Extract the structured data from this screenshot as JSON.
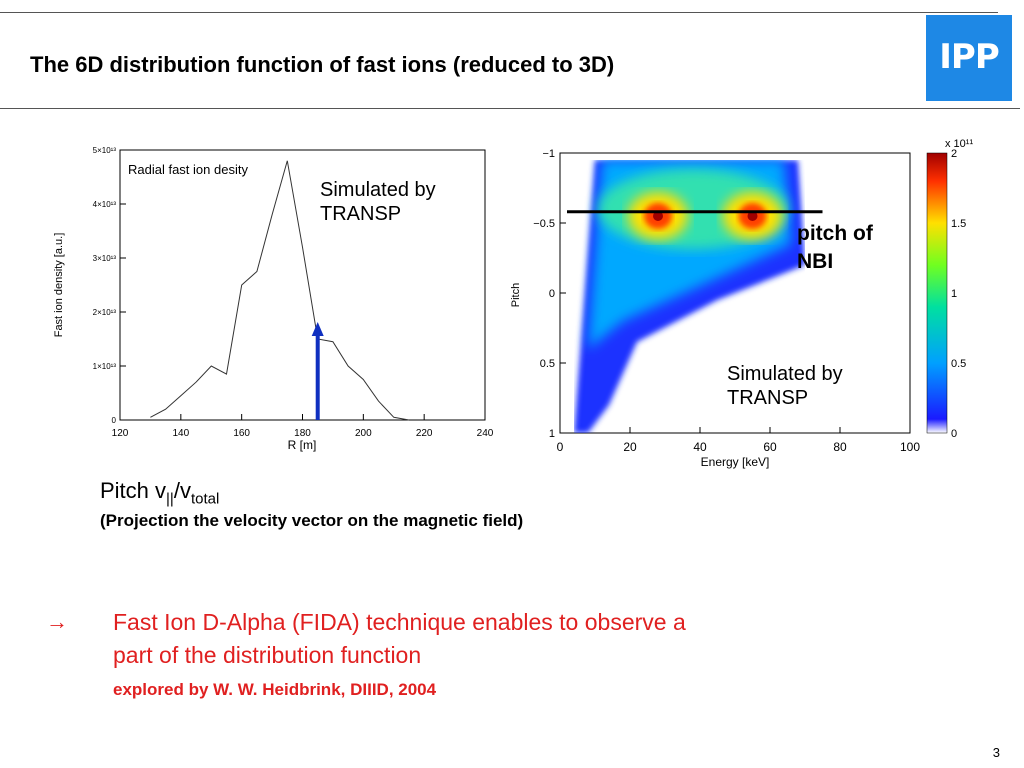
{
  "slide": {
    "title": "The 6D distribution function of fast ions (reduced to 3D)",
    "logo_text": "IPP",
    "page_number": "3",
    "pitch_label_main": "Pitch v",
    "pitch_label_sub1": "||",
    "pitch_label_mid": "/v",
    "pitch_label_sub2": "total",
    "projection_text": "(Projection the velocity vector on the magnetic field)",
    "arrow_glyph": "→",
    "fida_text": "Fast Ion D-Alpha (FIDA) technique enables to observe a part of the distribution function",
    "explored_text": "explored by W. W. Heidbrink, DIIID, 2004",
    "annotations": {
      "sim_left_1": "Simulated by",
      "sim_left_2": "TRANSP",
      "pitch_nbi_1": "pitch of",
      "pitch_nbi_2": "NBI",
      "sim_right_1": "Simulated by",
      "sim_right_2": "TRANSP"
    },
    "colors": {
      "accent": "#e02020",
      "logo_bg": "#1e88e5",
      "arrow_blue": "#1030c0"
    }
  },
  "chart_data": [
    {
      "type": "line",
      "title": "Radial fast ion desity",
      "xlabel": "R [m]",
      "ylabel": "Fast ion density [a.u.]",
      "xlim": [
        120,
        240
      ],
      "ylim": [
        0,
        50000000000000.0
      ],
      "xticks": [
        "120",
        "140",
        "160",
        "180",
        "200",
        "220",
        "240"
      ],
      "yticks": [
        "0",
        "1×10¹³",
        "2×10¹³",
        "3×10¹³",
        "4×10¹³",
        "5×10¹³"
      ],
      "x": [
        130,
        135,
        140,
        145,
        150,
        155,
        160,
        165,
        170,
        175,
        180,
        185,
        190,
        195,
        200,
        205,
        210,
        215
      ],
      "y": [
        500000000000.0,
        2000000000000.0,
        4500000000000.0,
        7000000000000.0,
        10000000000000.0,
        8500000000000.0,
        25000000000000.0,
        27500000000000.0,
        38000000000000.0,
        48000000000000.0,
        32000000000000.0,
        15000000000000.0,
        14500000000000.0,
        10000000000000.0,
        7500000000000.0,
        3500000000000.0,
        500000000000.0,
        0.0
      ],
      "marker_R": 185,
      "grid": false
    },
    {
      "type": "heatmap",
      "xlabel": "Energy [keV]",
      "ylabel": "Pitch",
      "xlim": [
        0,
        100
      ],
      "ylim": [
        -1,
        1
      ],
      "xticks": [
        "0",
        "20",
        "40",
        "60",
        "80",
        "100"
      ],
      "yticks": [
        "−1",
        "−0.5",
        "0",
        "0.5",
        "1"
      ],
      "colorbar_label": "x 10¹¹",
      "colorbar_ticks": [
        "0",
        "0.5",
        "1",
        "1.5",
        "2"
      ],
      "peaks": [
        {
          "energy": 28,
          "pitch": -0.55
        },
        {
          "energy": 55,
          "pitch": -0.55
        }
      ],
      "nbi_pitch": -0.58
    }
  ]
}
